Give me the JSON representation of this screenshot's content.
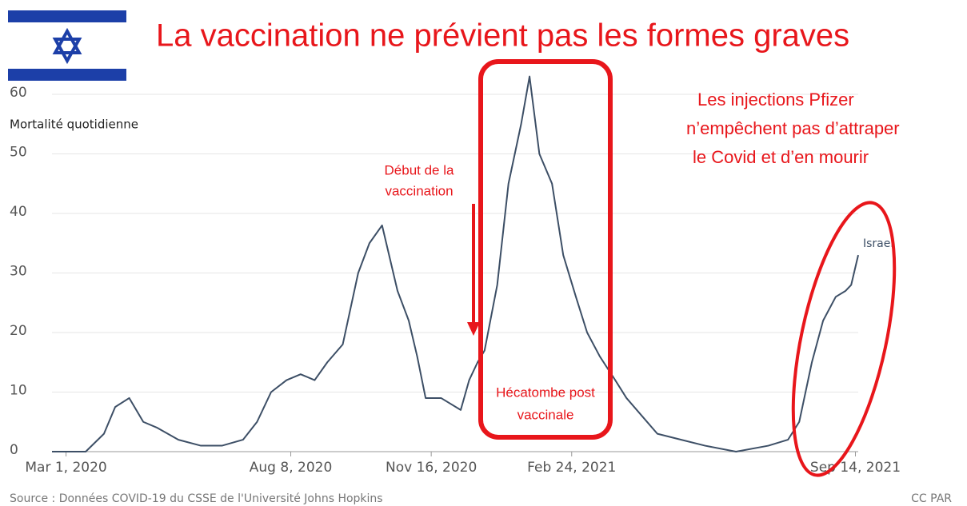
{
  "chart_data": {
    "type": "line",
    "title": "La vaccination ne prévient pas les formes graves",
    "y_label": "Mortalité quotidienne",
    "source": "Source : Données COVID-19 du CSSE de l'Université Johns Hopkins",
    "credit": "CC PAR",
    "annotations": {
      "vaccination_start": [
        "Début de la",
        "vaccination"
      ],
      "claim": [
        "Les injections Pfizer",
        "n’empêchent pas d’attraper",
        "le Covid et d’en mourir"
      ],
      "box": [
        "Hécatombe post",
        "vaccinale"
      ]
    },
    "x": [
      "2020-02-20",
      "2020-03-15",
      "2020-03-28",
      "2020-04-05",
      "2020-04-15",
      "2020-04-25",
      "2020-05-05",
      "2020-05-20",
      "2020-06-05",
      "2020-06-20",
      "2020-07-05",
      "2020-07-15",
      "2020-07-25",
      "2020-08-05",
      "2020-08-15",
      "2020-08-25",
      "2020-09-03",
      "2020-09-14",
      "2020-09-25",
      "2020-10-03",
      "2020-10-12",
      "2020-10-17",
      "2020-10-23",
      "2020-10-31",
      "2020-11-06",
      "2020-11-12",
      "2020-11-23",
      "2020-12-07",
      "2020-12-13",
      "2020-12-19",
      "2020-12-24",
      "2021-01-02",
      "2021-01-10",
      "2021-01-19",
      "2021-01-25",
      "2021-02-01",
      "2021-02-10",
      "2021-02-18",
      "2021-02-27",
      "2021-03-07",
      "2021-03-16",
      "2021-03-27",
      "2021-04-04",
      "2021-04-15",
      "2021-04-26",
      "2021-05-13",
      "2021-05-30",
      "2021-06-21",
      "2021-07-14",
      "2021-07-28",
      "2021-08-05",
      "2021-08-14",
      "2021-08-22",
      "2021-08-31",
      "2021-09-07",
      "2021-09-11",
      "2021-09-16"
    ],
    "series": [
      {
        "name": "Israel",
        "color": "#3d4f66",
        "values": [
          0,
          0,
          3,
          7.5,
          9,
          5,
          4,
          2,
          1,
          1,
          2,
          5,
          10,
          12,
          13,
          12,
          15,
          18,
          30,
          35,
          38,
          33,
          27,
          22,
          16,
          9,
          9,
          7,
          12,
          15,
          17,
          28,
          45,
          55,
          63,
          50,
          45,
          33,
          26,
          20,
          16,
          12,
          9,
          6,
          3,
          2,
          1,
          0,
          1,
          2,
          5,
          15,
          22,
          26,
          27,
          28,
          33
        ]
      }
    ],
    "xlim": [
      "2020-02-20",
      "2021-09-16"
    ],
    "xticks": [
      {
        "value": "2020-03-01",
        "label": "Mar 1, 2020"
      },
      {
        "value": "2020-08-08",
        "label": "Aug 8, 2020"
      },
      {
        "value": "2020-11-16",
        "label": "Nov 16, 2020"
      },
      {
        "value": "2021-02-24",
        "label": "Feb 24, 2021"
      },
      {
        "value": "2021-09-14",
        "label": "Sep 14, 2021"
      }
    ],
    "ylim": [
      0,
      60
    ],
    "yticks": [
      0,
      10,
      20,
      30,
      40,
      50,
      60
    ],
    "grid": true
  }
}
